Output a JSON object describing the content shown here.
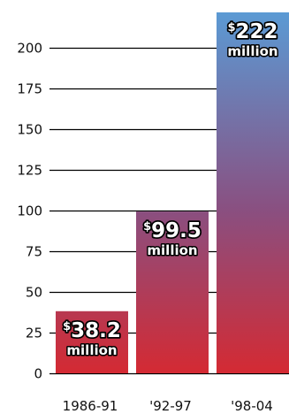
{
  "chart_data": {
    "type": "bar",
    "categories": [
      "1986-91",
      "'92-97",
      "'98-04"
    ],
    "values": [
      38.2,
      99.5,
      222
    ],
    "data_labels": [
      {
        "currency": "$",
        "amount": "38.2",
        "unit": "million"
      },
      {
        "currency": "$",
        "amount": "99.5",
        "unit": "million"
      },
      {
        "currency": "$",
        "amount": "222",
        "unit": "million"
      }
    ],
    "yticks": [
      0,
      25,
      50,
      75,
      100,
      125,
      150,
      175,
      200
    ],
    "ylim": [
      0,
      222
    ],
    "grid": true,
    "legend": "none",
    "colors": {
      "bar_bottom": "#d42a33",
      "bar_mid": "#8a4f80",
      "bar_top": "#5b9ad4",
      "gridline": "#000000",
      "label_text": "#ffffff",
      "label_outline": "#000000"
    }
  }
}
